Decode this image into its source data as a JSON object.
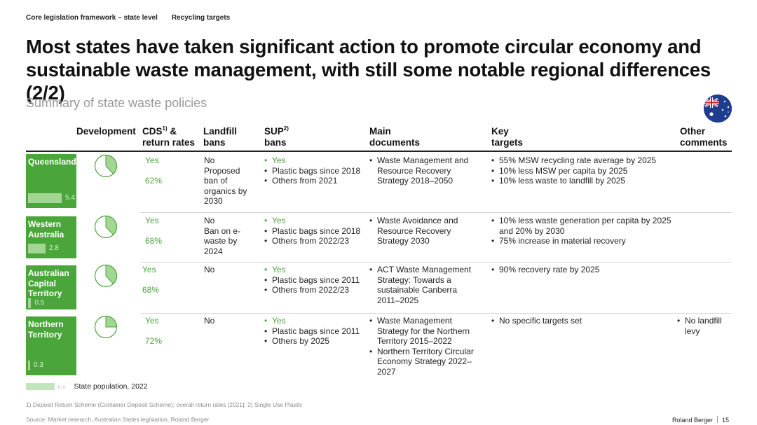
{
  "header": {
    "breadcrumb_1": "Core legislation framework – state level",
    "breadcrumb_2": "Recycling targets",
    "title": "Most states have taken significant action to promote circular economy and sustainable waste management, with still some notable regional differences (2/2)",
    "subtitle": "Summary of state waste policies"
  },
  "columns": {
    "development": "Development",
    "cds": "CDS",
    "cds_sup": "1)",
    "cds_rest": " &",
    "cds_line2": "return rates",
    "landfill_1": "Landfill",
    "landfill_2": "bans",
    "sup": "SUP",
    "sup_sup": "2)",
    "sup_line2": "bans",
    "docs_1": "Main",
    "docs_2": "documents",
    "targets_1": "Key",
    "targets_2": "targets",
    "other_1": "Other",
    "other_2": "comments"
  },
  "rows": [
    {
      "state": "Queensland",
      "population": "5.4",
      "population_value": 5.4,
      "development_fraction": 0.38,
      "cds": "Yes",
      "rate": "62%",
      "landfill": "No\nProposed ban of organics by 2030",
      "sup": [
        "Yes",
        "Plastic bags since 2018",
        "Others from 2021"
      ],
      "docs": [
        "Waste Management and Resource Recovery Strategy 2018–2050"
      ],
      "targets": [
        "55% MSW recycling rate average by 2025",
        "10% less MSW per capita by 2025",
        "10% less waste to landfill by 2025"
      ],
      "other": []
    },
    {
      "state": "Western Australia",
      "population": "2.8",
      "population_value": 2.8,
      "development_fraction": 0.38,
      "cds": "Yes",
      "rate": "68%",
      "landfill": "No\nBan on e-waste by 2024",
      "sup": [
        "Yes",
        "Plastic bags since 2018",
        "Others from 2022/23"
      ],
      "docs": [
        "Waste Avoidance and Resource Recovery Strategy 2030"
      ],
      "targets": [
        "10% less waste generation per capita by 2025 and 20% by 2030",
        "75% increase in material recovery"
      ],
      "other": []
    },
    {
      "state": "Australian Capital Territory",
      "population": "0.5",
      "population_value": 0.5,
      "development_fraction": 0.38,
      "cds": "Yes",
      "rate": "68%",
      "landfill": "No",
      "sup": [
        "Yes",
        "Plastic bags since 2011",
        "Others from 2022/23"
      ],
      "docs": [
        "ACT Waste Management Strategy: Towards a sustainable Canberra 2011–2025"
      ],
      "targets": [
        "90% recovery rate by 2025"
      ],
      "other": []
    },
    {
      "state": "Northern Territory",
      "population": "0.3",
      "population_value": 0.3,
      "development_fraction": 0.25,
      "cds": "Yes",
      "rate": "72%",
      "landfill": "No",
      "sup": [
        "Yes",
        "Plastic bags since 2011",
        "Others by 2025"
      ],
      "docs": [
        "Waste Management Strategy for the Northern Territory 2015–2022",
        "Northern Territory Circular Economy Strategy 2022–2027"
      ],
      "targets": [
        "No specific targets set"
      ],
      "other": [
        "No landfill levy"
      ]
    }
  ],
  "legend": {
    "placeholder": "x.x",
    "label": "State population, 2022"
  },
  "footnote": "1) Deposit Return Scheme (Container Deposit Scheme); overall return rates [2021]; 2) Single Use Plastic",
  "source": "Source: Market research, Australian States legislation, Roland Berger",
  "brand": "Roland Berger",
  "page_number": "15",
  "colors": {
    "accent_green": "#4aa63a",
    "light_green": "#a3d693",
    "flag_blue": "#1f3d8f"
  }
}
